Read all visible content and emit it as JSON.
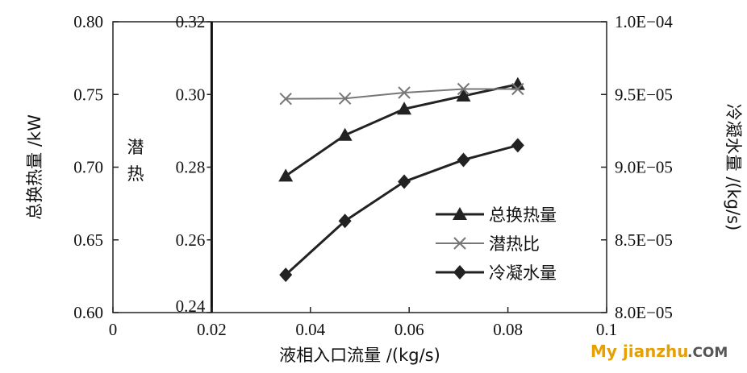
{
  "chart_data": {
    "type": "line",
    "xlabel": "液相入口流量 /(kg/s)",
    "ylabel_left": "总换热量 /kW",
    "ylabel_inner": "潜热",
    "ylabel_right": "冷凝水量 /(kg/s)",
    "xlim": [
      0,
      0.1
    ],
    "ylim_left": [
      0.6,
      0.8
    ],
    "ylim_inner": [
      0.24,
      0.32
    ],
    "ylim_right": [
      8e-05,
      0.0001
    ],
    "x_ticks": [
      "0",
      "0.02",
      "0.04",
      "0.06",
      "0.08",
      "0.1"
    ],
    "y_left_ticks": [
      "0.60",
      "0.65",
      "0.70",
      "0.75",
      "0.80"
    ],
    "y_inner_ticks": [
      "0.24",
      "0.26",
      "0.28",
      "0.30",
      "0.32"
    ],
    "y_right_ticks": [
      "8.0E−05",
      "8.5E−05",
      "9.0E−05",
      "9.5E−05",
      "1.0E−04"
    ],
    "x": [
      0.035,
      0.047,
      0.059,
      0.071,
      0.082
    ],
    "series": [
      {
        "name": "总换热量",
        "axis": "left",
        "marker": "triangle",
        "color": "#222222",
        "values": [
          0.694,
          0.722,
          0.74,
          0.749,
          0.757
        ]
      },
      {
        "name": "潜热比",
        "axis": "inner",
        "marker": "x",
        "color": "#777777",
        "values": [
          0.2988,
          0.2989,
          0.3005,
          0.3015,
          0.3015
        ]
      },
      {
        "name": "冷凝水量",
        "axis": "right",
        "marker": "diamond",
        "color": "#222222",
        "values": [
          8.26e-05,
          8.63e-05,
          8.9e-05,
          9.05e-05,
          9.15e-05
        ]
      }
    ],
    "grid": false,
    "legend_position": "bottom-right"
  },
  "watermark": {
    "part1": "My jianzhu",
    "part2": ".COM"
  }
}
